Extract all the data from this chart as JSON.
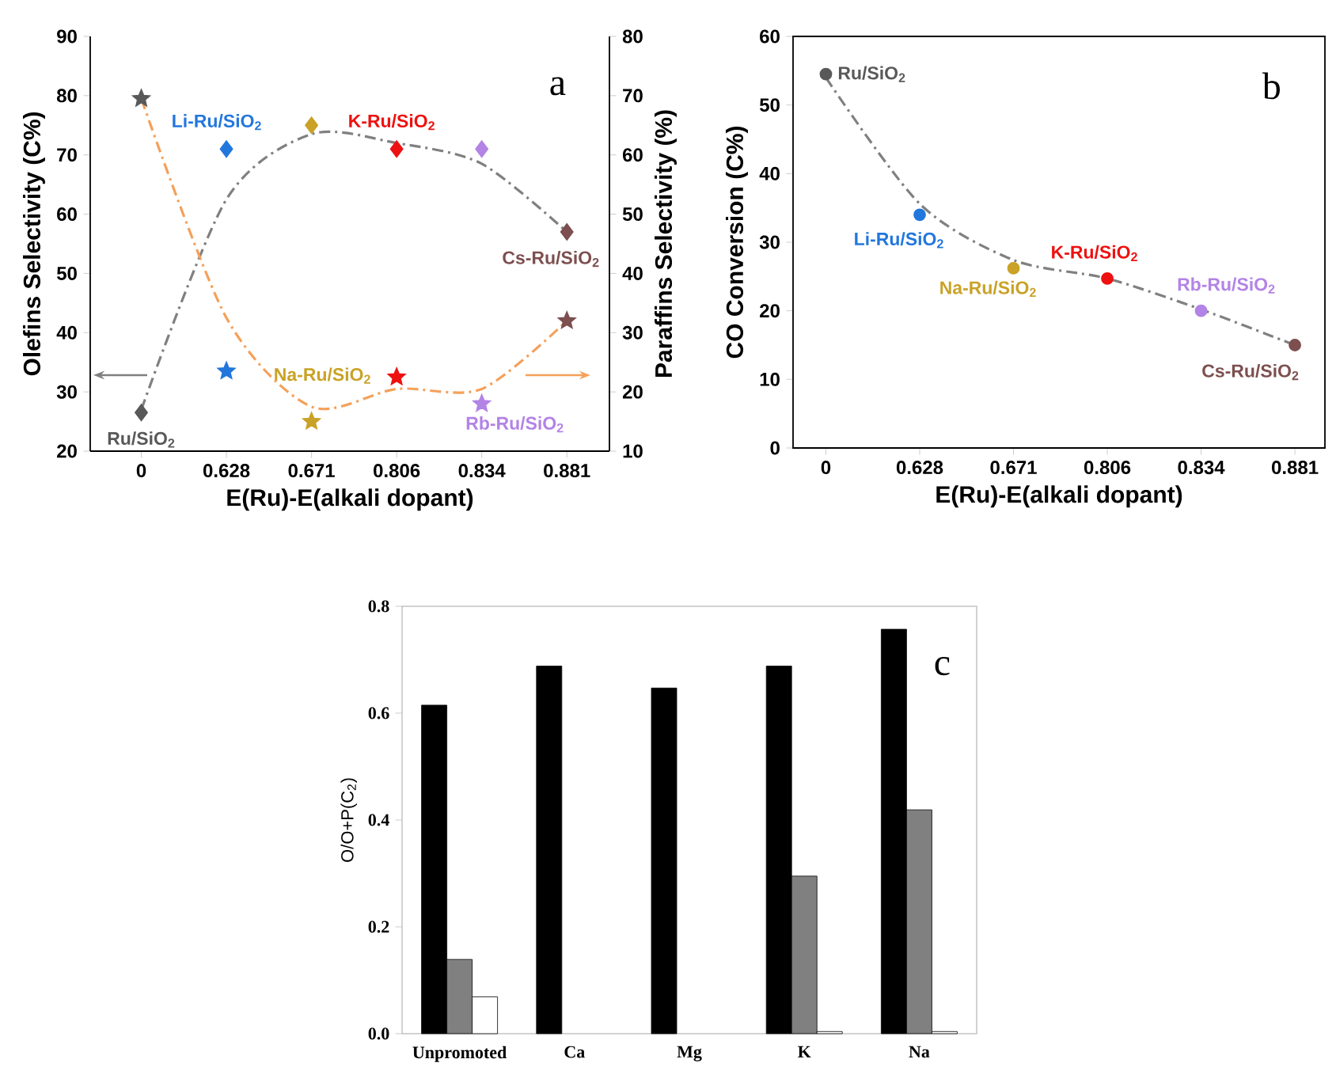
{
  "chart_data": [
    {
      "type": "scatter",
      "categories": [
        "0",
        "0.628",
        "0.671",
        "0.806",
        "0.834",
        "0.881"
      ],
      "xlabel": "E(Ru)-E(alkali dopant)",
      "ylabel": "Olefins Selectivity (C%)",
      "y2label": "Paraffins Selectivity (%)",
      "ylim": [
        20,
        90
      ],
      "yticks": [
        20,
        30,
        40,
        50,
        60,
        70,
        80,
        90
      ],
      "y2lim": [
        10,
        80
      ],
      "y2ticks": [
        10,
        20,
        30,
        40,
        50,
        60,
        70,
        80
      ],
      "series": [
        {
          "type": "scatter",
          "marker": "diamond",
          "colors": [
            "#595959",
            "#2277dd",
            "#c9a227",
            "#ee1111",
            "#b383e6",
            "#7d4f4f"
          ],
          "values": [
            26.5,
            71,
            75,
            71,
            71,
            57
          ]
        },
        {
          "type": "scatter",
          "marker": "star",
          "axis": "y2",
          "colors": [
            "#595959",
            "#2277dd",
            "#c9a227",
            "#ee1111",
            "#b383e6",
            "#7d4f4f"
          ],
          "values": [
            69.5,
            23.5,
            15,
            22.5,
            18,
            32
          ]
        },
        {
          "type": "line",
          "marker": "none",
          "line_style": "dashed",
          "color": "#808080",
          "values": [
            27,
            62.5,
            73.5,
            72,
            68.5,
            57
          ]
        },
        {
          "type": "line",
          "marker": "none",
          "line_style": "dashed",
          "color": "#f5a05a",
          "axis": "y2",
          "values": [
            69.5,
            32.5,
            17.5,
            20.5,
            20.5,
            32
          ]
        }
      ],
      "annotations": [
        "a",
        {
          "text": "Ru/SiO$_{2}$",
          "x": "0",
          "y": 26.5
        },
        {
          "text": "Li-Ru/SiO$_{2}$",
          "x": "0.628",
          "y": 71
        },
        {
          "text": "Na-Ru/SiO$_{2}$",
          "x": "0.671",
          "y": 25
        },
        {
          "text": "K-Ru/SiO$_{2}$",
          "x": "0.806",
          "y": 71
        },
        {
          "text": "Rb-Ru/SiO$_{2}$",
          "x": "0.834",
          "y": 28
        },
        {
          "text": "Cs-Ru/SiO$_{2}$",
          "x": "0.881",
          "y": 57
        }
      ]
    },
    {
      "type": "scatter",
      "categories": [
        "0",
        "0.628",
        "0.671",
        "0.806",
        "0.834",
        "0.881"
      ],
      "xlabel": "E(Ru)-E(alkali dopant)",
      "ylabel": "CO Conversion (C%)",
      "ylim": [
        0,
        60
      ],
      "yticks": [
        0,
        10,
        20,
        30,
        40,
        50,
        60
      ],
      "series": [
        {
          "type": "scatter",
          "marker": "circle",
          "colors": [
            "#595959",
            "#2277dd",
            "#c9a227",
            "#ee1111",
            "#b383e6",
            "#7d4f4f"
          ],
          "values": [
            54.5,
            34,
            26.2,
            24.7,
            20,
            15
          ]
        },
        {
          "type": "line",
          "marker": "none",
          "line_style": "dashed",
          "color": "#808080",
          "values": [
            54,
            35.6,
            27.4,
            24.7,
            20.2,
            15
          ]
        }
      ],
      "annotations": [
        "b",
        {
          "text": "Ru/SiO$_{2}$",
          "x": "0",
          "y": 54.5
        },
        {
          "text": "Li-Ru/SiO$_{2}$",
          "x": "0.628",
          "y": 34
        },
        {
          "text": "Na-Ru/SiO$_{2}$",
          "x": "0.671",
          "y": 26.2
        },
        {
          "text": "K-Ru/SiO$_{2}$",
          "x": "0.806",
          "y": 24.7
        },
        {
          "text": "Rb-Ru/SiO$_{2}$",
          "x": "0.834",
          "y": 20
        },
        {
          "text": "Cs-Ru/SiO$_{2}$",
          "x": "0.881",
          "y": 15
        }
      ]
    },
    {
      "type": "bar",
      "categories": [
        "Unpromoted",
        "Ca",
        "Mg",
        "K",
        "Na"
      ],
      "ylabel": "O/O+P(C$_{2}$)",
      "ylim": [
        0,
        0.8
      ],
      "yticks": [
        {
          "value": 0,
          "label": "0.0"
        },
        0.2,
        0.4,
        0.6,
        0.8
      ],
      "series": [
        {
          "color": "#000000",
          "values": [
            0.615,
            0.688,
            0.647,
            0.688,
            0.757
          ]
        },
        {
          "color": "#808080",
          "values": [
            0.139,
            null,
            null,
            0.295,
            0.419
          ]
        },
        {
          "color": "#ffffff",
          "values": [
            0.069,
            null,
            null,
            0.004,
            0.004
          ]
        }
      ],
      "annotations": [
        "c"
      ]
    }
  ]
}
